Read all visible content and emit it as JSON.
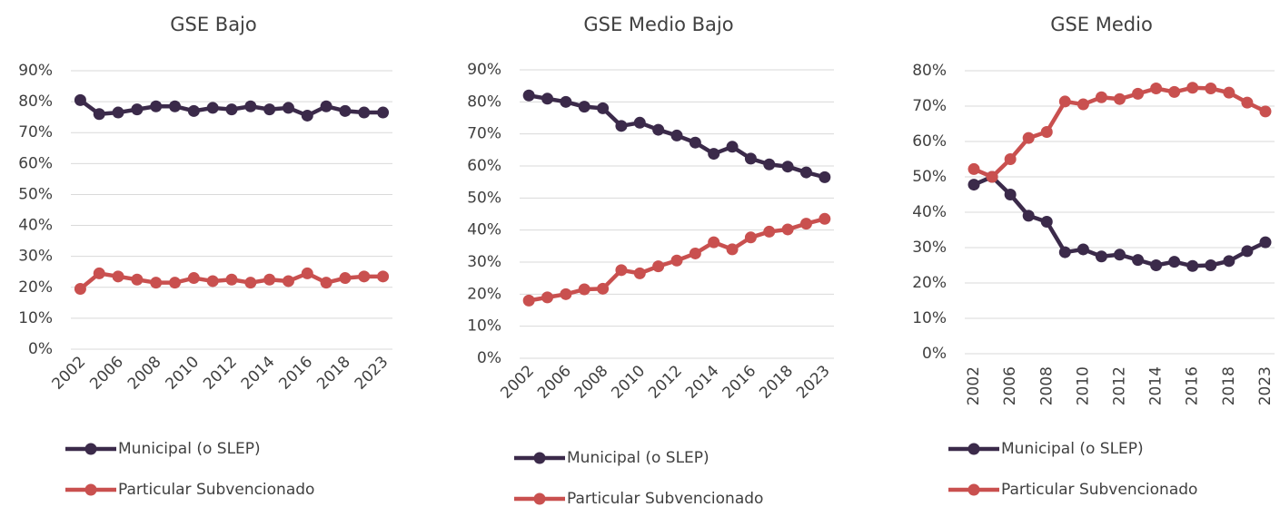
{
  "chart_data": [
    {
      "type": "line",
      "title": "GSE Bajo",
      "categories": [
        "2002",
        null,
        "2006",
        null,
        "2008",
        null,
        "2010",
        null,
        "2012",
        null,
        "2014",
        null,
        "2016",
        null,
        "2018",
        null,
        "2023"
      ],
      "series": [
        {
          "name": "Municipal (o SLEP)",
          "color": "#3b2a4a",
          "values": [
            80.5,
            76,
            76.5,
            77.5,
            78.5,
            78.5,
            77,
            78,
            77.5,
            78.5,
            77.5,
            78,
            75.5,
            78.5,
            77,
            76.5,
            76.5
          ]
        },
        {
          "name": "Particular Subvencionado",
          "color": "#c9504f",
          "values": [
            19.5,
            24.5,
            23.5,
            22.5,
            21.5,
            21.5,
            23,
            22,
            22.5,
            21.5,
            22.5,
            22,
            24.5,
            21.5,
            23,
            23.5,
            23.5
          ]
        }
      ],
      "ylim": [
        0,
        90
      ],
      "yticks": [
        {
          "value": 0,
          "label": "0%"
        },
        {
          "value": 10,
          "label": "10%"
        },
        {
          "value": 20,
          "label": "20%"
        },
        {
          "value": 30,
          "label": "30%"
        },
        {
          "value": 40,
          "label": "40%"
        },
        {
          "value": 50,
          "label": "50%"
        },
        {
          "value": 60,
          "label": "60%"
        },
        {
          "value": 70,
          "label": "70%"
        },
        {
          "value": 80,
          "label": "80%"
        },
        {
          "value": 90,
          "label": "90%"
        }
      ],
      "grid": true,
      "legend": "bottom"
    },
    {
      "type": "line",
      "title": "GSE Medio Bajo",
      "categories": [
        "2002",
        null,
        "2006",
        null,
        "2008",
        null,
        "2010",
        null,
        "2012",
        null,
        "2014",
        null,
        "2016",
        null,
        "2018",
        null,
        "2023"
      ],
      "series": [
        {
          "name": "Municipal (o SLEP)",
          "color": "#3b2a4a",
          "values": [
            82,
            81,
            80,
            78.5,
            78,
            72.5,
            73.5,
            71.3,
            69.5,
            67.3,
            63.8,
            66,
            62.3,
            60.5,
            59.8,
            58,
            56.5
          ]
        },
        {
          "name": "Particular Subvencionado",
          "color": "#c9504f",
          "values": [
            18,
            19,
            20,
            21.5,
            21.7,
            27.5,
            26.5,
            28.7,
            30.5,
            32.7,
            36.2,
            34,
            37.7,
            39.5,
            40.2,
            42,
            43.5
          ]
        }
      ],
      "ylim": [
        0,
        90
      ],
      "yticks": [
        {
          "value": 0,
          "label": "0%"
        },
        {
          "value": 10,
          "label": "10%"
        },
        {
          "value": 20,
          "label": "20%"
        },
        {
          "value": 30,
          "label": "30%"
        },
        {
          "value": 40,
          "label": "40%"
        },
        {
          "value": 50,
          "label": "50%"
        },
        {
          "value": 60,
          "label": "60%"
        },
        {
          "value": 70,
          "label": "70%"
        },
        {
          "value": 80,
          "label": "80%"
        },
        {
          "value": 90,
          "label": "90%"
        }
      ],
      "grid": true,
      "legend": "bottom"
    },
    {
      "type": "line",
      "title": "GSE Medio",
      "categories": [
        "2002",
        null,
        "2006",
        null,
        "2008",
        null,
        "2010",
        null,
        "2012",
        null,
        "2014",
        null,
        "2016",
        null,
        "2018",
        null,
        "2023"
      ],
      "series": [
        {
          "name": "Municipal (o SLEP)",
          "color": "#3b2a4a",
          "values": [
            47.8,
            50,
            45,
            39,
            37.3,
            28.7,
            29.5,
            27.5,
            28,
            26.5,
            25,
            26,
            24.8,
            25,
            26.2,
            29,
            31.5
          ]
        },
        {
          "name": "Particular Subvencionado",
          "color": "#c9504f",
          "values": [
            52.2,
            50,
            55,
            61,
            62.7,
            71.3,
            70.5,
            72.5,
            72,
            73.5,
            75,
            74,
            75.2,
            75,
            73.8,
            71,
            68.5
          ]
        }
      ],
      "ylim": [
        0,
        80
      ],
      "yticks": [
        {
          "value": 0,
          "label": "0%"
        },
        {
          "value": 10,
          "label": "10%"
        },
        {
          "value": 20,
          "label": "20%"
        },
        {
          "value": 30,
          "label": "30%"
        },
        {
          "value": 40,
          "label": "40%"
        },
        {
          "value": 50,
          "label": "50%"
        },
        {
          "value": 60,
          "label": "60%"
        },
        {
          "value": 70,
          "label": "70%"
        },
        {
          "value": 80,
          "label": "80%"
        }
      ],
      "grid": true,
      "legend": "bottom"
    }
  ]
}
